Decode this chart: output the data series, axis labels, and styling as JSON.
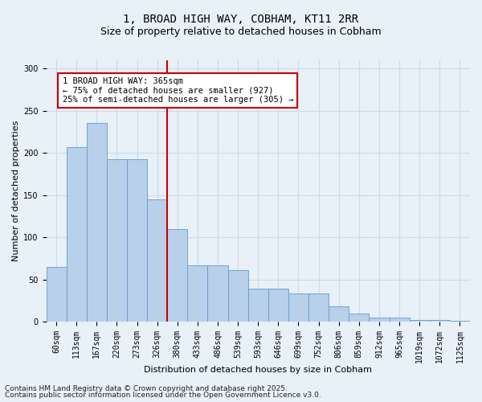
{
  "title_line1": "1, BROAD HIGH WAY, COBHAM, KT11 2RR",
  "title_line2": "Size of property relative to detached houses in Cobham",
  "xlabel": "Distribution of detached houses by size in Cobham",
  "ylabel": "Number of detached properties",
  "categories": [
    "60sqm",
    "113sqm",
    "167sqm",
    "220sqm",
    "273sqm",
    "326sqm",
    "380sqm",
    "433sqm",
    "486sqm",
    "539sqm",
    "593sqm",
    "646sqm",
    "699sqm",
    "752sqm",
    "806sqm",
    "859sqm",
    "912sqm",
    "965sqm",
    "1019sqm",
    "1072sqm",
    "1125sqm"
  ],
  "values": [
    65,
    207,
    236,
    193,
    193,
    145,
    110,
    67,
    67,
    61,
    39,
    39,
    33,
    33,
    18,
    10,
    5,
    5,
    2,
    2,
    1
  ],
  "bar_color": "#b8d0ea",
  "bar_edge_color": "#6699cc",
  "grid_color": "#ccdaeb",
  "background_color": "#e8f0f8",
  "vline_x_idx": 6,
  "vline_color": "#cc0000",
  "annotation_text": "1 BROAD HIGH WAY: 365sqm\n← 75% of detached houses are smaller (927)\n25% of semi-detached houses are larger (305) →",
  "annotation_box_facecolor": "#ffffff",
  "annotation_box_edgecolor": "#cc0000",
  "footnote1": "Contains HM Land Registry data © Crown copyright and database right 2025.",
  "footnote2": "Contains public sector information licensed under the Open Government Licence v3.0.",
  "ylim": [
    0,
    310
  ],
  "yticks": [
    0,
    50,
    100,
    150,
    200,
    250,
    300
  ],
  "title1_fontsize": 10,
  "title2_fontsize": 9,
  "axis_label_fontsize": 8,
  "tick_fontsize": 7,
  "annotation_fontsize": 7.5,
  "footnote_fontsize": 6.5
}
